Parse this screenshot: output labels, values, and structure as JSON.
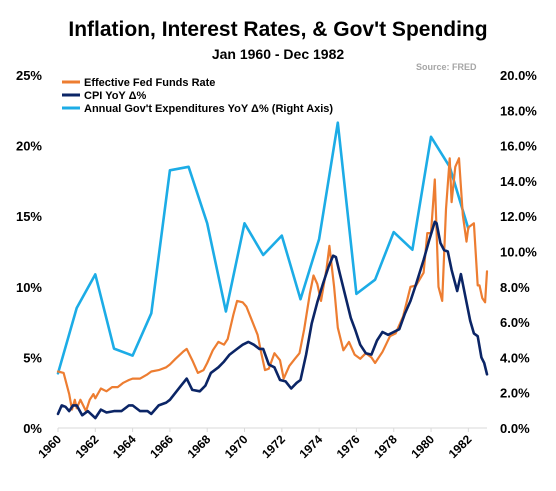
{
  "chart_data": {
    "type": "line",
    "title": "Inflation, Interest Rates, & Gov't Spending",
    "subtitle": "Jan 1960 - Dec 1982",
    "source": "Source: FRED",
    "grid": false,
    "legend_position": "top-left",
    "x_ticks": [
      "1960",
      "1962",
      "1964",
      "1966",
      "1968",
      "1970",
      "1972",
      "1974",
      "1976",
      "1978",
      "1980",
      "1982"
    ],
    "y_left": {
      "ticks": [
        "0%",
        "5%",
        "10%",
        "15%",
        "20%",
        "25%"
      ],
      "range": [
        0,
        25
      ]
    },
    "y_right": {
      "ticks": [
        "0.0%",
        "2.0%",
        "4.0%",
        "6.0%",
        "8.0%",
        "10.0%",
        "12.0%",
        "14.0%",
        "16.0%",
        "18.0%",
        "20.0%"
      ],
      "range": [
        0,
        20
      ]
    },
    "series": [
      {
        "name": "Effective Fed Funds Rate",
        "color": "#ed7d31",
        "axis": "left",
        "points": [
          [
            1960.0,
            4.0
          ],
          [
            1960.3,
            3.9
          ],
          [
            1960.6,
            2.4
          ],
          [
            1960.75,
            1.3
          ],
          [
            1960.9,
            2.0
          ],
          [
            1961.0,
            1.4
          ],
          [
            1961.2,
            2.0
          ],
          [
            1961.5,
            1.2
          ],
          [
            1961.7,
            2.0
          ],
          [
            1961.9,
            2.4
          ],
          [
            1962.0,
            2.1
          ],
          [
            1962.3,
            2.8
          ],
          [
            1962.6,
            2.6
          ],
          [
            1962.9,
            2.9
          ],
          [
            1963.2,
            2.9
          ],
          [
            1963.5,
            3.2
          ],
          [
            1963.8,
            3.4
          ],
          [
            1964.0,
            3.5
          ],
          [
            1964.4,
            3.5
          ],
          [
            1964.8,
            3.8
          ],
          [
            1965.0,
            4.0
          ],
          [
            1965.4,
            4.1
          ],
          [
            1965.8,
            4.3
          ],
          [
            1966.0,
            4.5
          ],
          [
            1966.3,
            4.9
          ],
          [
            1966.7,
            5.4
          ],
          [
            1966.9,
            5.6
          ],
          [
            1967.2,
            4.8
          ],
          [
            1967.5,
            3.9
          ],
          [
            1967.8,
            4.1
          ],
          [
            1968.0,
            4.6
          ],
          [
            1968.3,
            5.5
          ],
          [
            1968.6,
            6.1
          ],
          [
            1968.9,
            5.9
          ],
          [
            1969.1,
            6.3
          ],
          [
            1969.4,
            8.0
          ],
          [
            1969.6,
            9.0
          ],
          [
            1969.9,
            8.9
          ],
          [
            1970.1,
            8.6
          ],
          [
            1970.4,
            7.6
          ],
          [
            1970.7,
            6.6
          ],
          [
            1970.9,
            5.3
          ],
          [
            1971.1,
            4.1
          ],
          [
            1971.3,
            4.2
          ],
          [
            1971.6,
            5.3
          ],
          [
            1971.9,
            4.8
          ],
          [
            1972.1,
            3.5
          ],
          [
            1972.4,
            4.4
          ],
          [
            1972.7,
            4.9
          ],
          [
            1972.95,
            5.3
          ],
          [
            1973.2,
            7.0
          ],
          [
            1973.5,
            9.5
          ],
          [
            1973.7,
            10.8
          ],
          [
            1973.9,
            10.2
          ],
          [
            1974.1,
            9.0
          ],
          [
            1974.4,
            11.3
          ],
          [
            1974.55,
            12.9
          ],
          [
            1974.8,
            10.0
          ],
          [
            1975.0,
            7.1
          ],
          [
            1975.3,
            5.5
          ],
          [
            1975.6,
            6.1
          ],
          [
            1975.9,
            5.2
          ],
          [
            1976.2,
            4.9
          ],
          [
            1976.5,
            5.3
          ],
          [
            1976.8,
            5.0
          ],
          [
            1977.0,
            4.6
          ],
          [
            1977.4,
            5.4
          ],
          [
            1977.8,
            6.5
          ],
          [
            1978.1,
            6.7
          ],
          [
            1978.5,
            7.9
          ],
          [
            1978.9,
            10.0
          ],
          [
            1979.2,
            10.1
          ],
          [
            1979.6,
            11.0
          ],
          [
            1979.8,
            13.8
          ],
          [
            1980.0,
            13.8
          ],
          [
            1980.2,
            17.6
          ],
          [
            1980.4,
            10.0
          ],
          [
            1980.6,
            9.0
          ],
          [
            1980.8,
            15.5
          ],
          [
            1981.0,
            19.1
          ],
          [
            1981.1,
            16.0
          ],
          [
            1981.3,
            18.5
          ],
          [
            1981.5,
            19.1
          ],
          [
            1981.7,
            15.1
          ],
          [
            1981.9,
            13.2
          ],
          [
            1982.0,
            14.2
          ],
          [
            1982.3,
            14.5
          ],
          [
            1982.5,
            10.1
          ],
          [
            1982.6,
            10.1
          ],
          [
            1982.75,
            9.2
          ],
          [
            1982.9,
            8.9
          ],
          [
            1983.0,
            11.1
          ]
        ]
      },
      {
        "name": "CPI YoY Δ%",
        "color": "#0b2566",
        "axis": "left",
        "points": [
          [
            1960.0,
            1.0
          ],
          [
            1960.2,
            1.6
          ],
          [
            1960.4,
            1.5
          ],
          [
            1960.6,
            1.2
          ],
          [
            1960.8,
            1.6
          ],
          [
            1961.0,
            1.6
          ],
          [
            1961.3,
            0.9
          ],
          [
            1961.6,
            1.2
          ],
          [
            1962.0,
            0.7
          ],
          [
            1962.3,
            1.3
          ],
          [
            1962.6,
            1.1
          ],
          [
            1963.0,
            1.2
          ],
          [
            1963.4,
            1.2
          ],
          [
            1963.8,
            1.6
          ],
          [
            1964.0,
            1.6
          ],
          [
            1964.4,
            1.2
          ],
          [
            1964.8,
            1.2
          ],
          [
            1965.0,
            1.0
          ],
          [
            1965.4,
            1.6
          ],
          [
            1965.8,
            1.8
          ],
          [
            1966.0,
            2.0
          ],
          [
            1966.3,
            2.5
          ],
          [
            1966.6,
            3.0
          ],
          [
            1966.9,
            3.5
          ],
          [
            1967.2,
            2.7
          ],
          [
            1967.6,
            2.6
          ],
          [
            1967.9,
            3.0
          ],
          [
            1968.2,
            3.9
          ],
          [
            1968.6,
            4.3
          ],
          [
            1968.9,
            4.7
          ],
          [
            1969.2,
            5.2
          ],
          [
            1969.6,
            5.6
          ],
          [
            1969.9,
            5.9
          ],
          [
            1970.2,
            6.1
          ],
          [
            1970.5,
            5.9
          ],
          [
            1970.8,
            5.6
          ],
          [
            1971.0,
            5.6
          ],
          [
            1971.3,
            4.5
          ],
          [
            1971.6,
            4.3
          ],
          [
            1971.9,
            3.4
          ],
          [
            1972.2,
            3.3
          ],
          [
            1972.5,
            2.8
          ],
          [
            1972.8,
            3.2
          ],
          [
            1973.0,
            3.4
          ],
          [
            1973.3,
            5.2
          ],
          [
            1973.6,
            7.4
          ],
          [
            1973.9,
            8.9
          ],
          [
            1974.2,
            10.2
          ],
          [
            1974.5,
            11.4
          ],
          [
            1974.75,
            12.2
          ],
          [
            1974.9,
            12.1
          ],
          [
            1975.1,
            11.0
          ],
          [
            1975.4,
            9.4
          ],
          [
            1975.7,
            7.8
          ],
          [
            1975.95,
            6.9
          ],
          [
            1976.2,
            5.9
          ],
          [
            1976.5,
            5.3
          ],
          [
            1976.8,
            5.2
          ],
          [
            1977.1,
            6.2
          ],
          [
            1977.4,
            6.8
          ],
          [
            1977.7,
            6.6
          ],
          [
            1978.0,
            6.8
          ],
          [
            1978.3,
            7.0
          ],
          [
            1978.6,
            8.1
          ],
          [
            1978.9,
            9.0
          ],
          [
            1979.2,
            10.2
          ],
          [
            1979.6,
            11.9
          ],
          [
            1979.9,
            13.3
          ],
          [
            1980.2,
            14.6
          ],
          [
            1980.3,
            14.5
          ],
          [
            1980.5,
            13.1
          ],
          [
            1980.7,
            12.6
          ],
          [
            1980.9,
            12.5
          ],
          [
            1981.1,
            11.2
          ],
          [
            1981.4,
            9.7
          ],
          [
            1981.6,
            10.9
          ],
          [
            1981.9,
            8.9
          ],
          [
            1982.1,
            7.6
          ],
          [
            1982.3,
            6.7
          ],
          [
            1982.5,
            6.5
          ],
          [
            1982.7,
            5.0
          ],
          [
            1982.85,
            4.6
          ],
          [
            1983.0,
            3.8
          ]
        ]
      },
      {
        "name": "Annual Gov't Expenditures YoY Δ% (Right Axis)",
        "color": "#1cace6",
        "axis": "right",
        "points": [
          [
            1960.0,
            3.1
          ],
          [
            1961.0,
            6.8
          ],
          [
            1962.0,
            8.7
          ],
          [
            1963.0,
            4.5
          ],
          [
            1964.0,
            4.1
          ],
          [
            1965.0,
            6.5
          ],
          [
            1966.0,
            14.6
          ],
          [
            1967.0,
            14.8
          ],
          [
            1968.0,
            11.6
          ],
          [
            1969.0,
            6.6
          ],
          [
            1970.0,
            11.6
          ],
          [
            1971.0,
            9.8
          ],
          [
            1972.0,
            10.9
          ],
          [
            1973.0,
            7.3
          ],
          [
            1974.0,
            10.7
          ],
          [
            1975.0,
            17.3
          ],
          [
            1976.0,
            7.6
          ],
          [
            1977.0,
            8.4
          ],
          [
            1978.0,
            11.1
          ],
          [
            1979.0,
            10.1
          ],
          [
            1980.0,
            16.5
          ],
          [
            1981.0,
            14.8
          ],
          [
            1982.0,
            11.3
          ]
        ]
      }
    ]
  }
}
